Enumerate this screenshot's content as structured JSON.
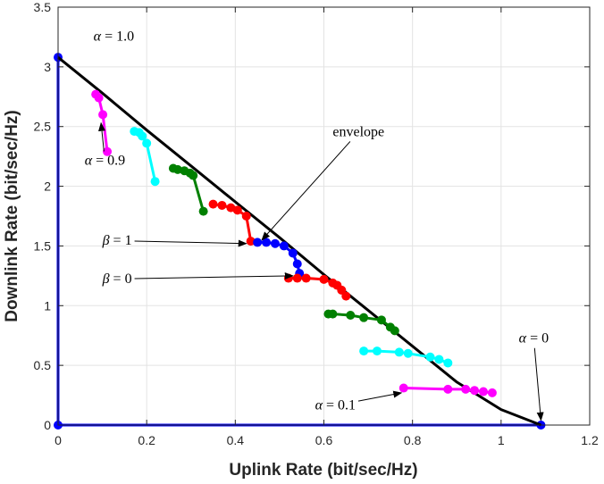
{
  "chart_data": {
    "type": "line",
    "title": "",
    "xlabel": "Uplink Rate (bit/sec/Hz)",
    "ylabel": "Downlink Rate (bit/sec/Hz)",
    "xlim": [
      0,
      1.2
    ],
    "ylim": [
      0,
      3.5
    ],
    "xticks": [
      0,
      0.2,
      0.4,
      0.6,
      0.8,
      1,
      1.2
    ],
    "xtick_labels": [
      "0",
      "0.2",
      "0.4",
      "0.6",
      "0.8",
      "1",
      "1.2"
    ],
    "yticks": [
      0,
      0.5,
      1,
      1.5,
      2,
      2.5,
      3,
      3.5
    ],
    "ytick_labels": [
      "0",
      "0.5",
      "1",
      "1.5",
      "2",
      "2.5",
      "3",
      "3.5"
    ],
    "grid": true,
    "series": [
      {
        "color": "#0000ff",
        "marker": true,
        "x": [
          0,
          0,
          1.09
        ],
        "y": [
          3.08,
          0,
          0
        ]
      },
      {
        "color": "#000000",
        "marker": false,
        "x": [
          0,
          0.1,
          0.2,
          0.3,
          0.4,
          0.5,
          0.6,
          0.7,
          0.8,
          0.9,
          1.0,
          1.09
        ],
        "y": [
          3.08,
          2.78,
          2.47,
          2.17,
          1.87,
          1.57,
          1.26,
          0.96,
          0.66,
          0.36,
          0.13,
          0
        ]
      },
      {
        "color": "#ff00ff",
        "marker": true,
        "x": [
          0.111,
          0.101,
          0.092,
          0.085
        ],
        "y": [
          2.29,
          2.6,
          2.74,
          2.77
        ]
      },
      {
        "color": "#00ffff",
        "marker": true,
        "x": [
          0.219,
          0.2,
          0.19,
          0.183,
          0.172
        ],
        "y": [
          2.04,
          2.36,
          2.42,
          2.45,
          2.46
        ]
      },
      {
        "color": "#008000",
        "marker": true,
        "x": [
          0.328,
          0.305,
          0.298,
          0.285,
          0.27,
          0.26
        ],
        "y": [
          1.79,
          2.09,
          2.11,
          2.13,
          2.14,
          2.15
        ]
      },
      {
        "color": "#ff0000",
        "marker": true,
        "x": [
          0.435,
          0.425,
          0.405,
          0.39,
          0.37,
          0.35
        ],
        "y": [
          1.54,
          1.75,
          1.8,
          1.82,
          1.84,
          1.85
        ]
      },
      {
        "color": "#0000ff",
        "marker": true,
        "x": [
          0.545,
          0.54,
          0.53,
          0.51,
          0.49,
          0.47,
          0.45
        ],
        "y": [
          1.27,
          1.35,
          1.44,
          1.5,
          1.52,
          1.53,
          1.53
        ]
      },
      {
        "color": "#ff0000",
        "marker": true,
        "x": [
          0.52,
          0.54,
          0.56,
          0.6,
          0.62,
          0.63,
          0.64,
          0.65
        ],
        "y": [
          1.23,
          1.23,
          1.23,
          1.22,
          1.19,
          1.17,
          1.13,
          1.08
        ]
      },
      {
        "color": "#008000",
        "marker": true,
        "x": [
          0.61,
          0.62,
          0.66,
          0.69,
          0.73,
          0.75,
          0.76
        ],
        "y": [
          0.93,
          0.93,
          0.92,
          0.9,
          0.88,
          0.82,
          0.79
        ]
      },
      {
        "color": "#00ffff",
        "marker": true,
        "x": [
          0.69,
          0.72,
          0.77,
          0.79,
          0.84,
          0.86,
          0.88
        ],
        "y": [
          0.62,
          0.62,
          0.61,
          0.6,
          0.57,
          0.55,
          0.52
        ]
      },
      {
        "color": "#ff00ff",
        "marker": true,
        "x": [
          0.78,
          0.88,
          0.92,
          0.94,
          0.96,
          0.98
        ],
        "y": [
          0.31,
          0.3,
          0.3,
          0.29,
          0.28,
          0.27
        ]
      }
    ],
    "annotations": [
      {
        "sym": "α",
        "rest": " = 1.0",
        "tx": 0.08,
        "ty": 3.22,
        "ax": 0.005,
        "ay": 3.08,
        "arrow": false
      },
      {
        "sym": "α",
        "rest": " = 0.9",
        "tx": 0.06,
        "ty": 2.18,
        "ax": 0.097,
        "ay": 2.53,
        "arrow": true
      },
      {
        "sym": "",
        "rest": "envelope",
        "tx": 0.62,
        "ty": 2.42,
        "ax": 0.46,
        "ay": 1.55,
        "arrow": true
      },
      {
        "sym": "β",
        "rest": " = 1",
        "tx": 0.1,
        "ty": 1.51,
        "ax": 0.425,
        "ay": 1.52,
        "arrow": true
      },
      {
        "sym": "β",
        "rest": " = 0",
        "tx": 0.1,
        "ty": 1.19,
        "ax": 0.53,
        "ay": 1.25,
        "arrow": true
      },
      {
        "sym": "α",
        "rest": " = 0",
        "tx": 1.04,
        "ty": 0.69,
        "ax": 1.09,
        "ay": 0.04,
        "arrow": true
      },
      {
        "sym": "α",
        "rest": " = 0.1",
        "tx": 0.58,
        "ty": 0.13,
        "ax": 0.775,
        "ay": 0.27,
        "arrow": true
      }
    ]
  }
}
